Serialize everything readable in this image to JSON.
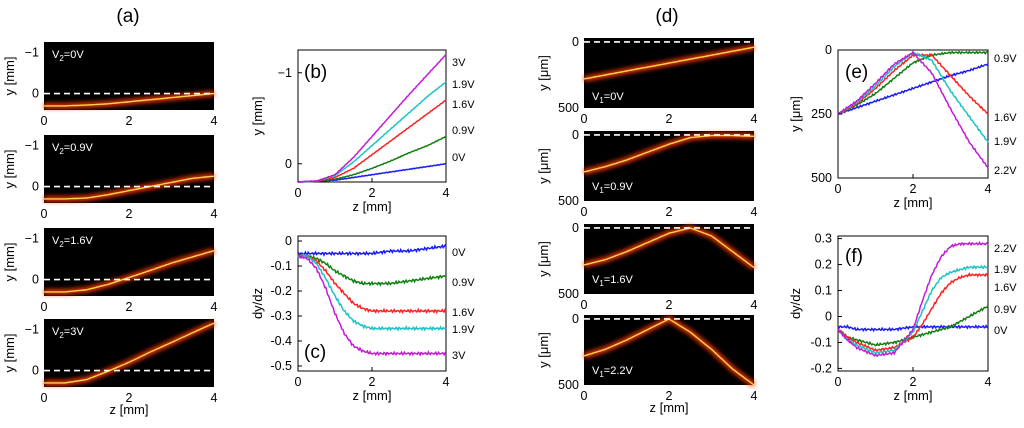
{
  "figure": {
    "label_a": "(a)",
    "label_d": "(d)"
  },
  "colors": {
    "v0": "#1a1aff",
    "v09": "#108010",
    "v16": "#ff2020",
    "v19": "#19c4c4",
    "v3": "#c41ad8"
  },
  "images_a": [
    {
      "ann_main": "V",
      "ann_sub": "2",
      "ann_rest": "=0V",
      "path_y_mm": [
        0.3,
        0.3,
        0.28,
        0.25,
        0.2,
        0.15,
        0.1,
        0.05,
        0.0
      ],
      "ylabel": "y [mm]",
      "yticks": [
        "−1",
        "0"
      ],
      "xticks": [
        "0",
        "2",
        "4"
      ]
    },
    {
      "ann_main": "V",
      "ann_sub": "2",
      "ann_rest": "=0.9V",
      "path_y_mm": [
        0.3,
        0.3,
        0.28,
        0.2,
        0.1,
        0.0,
        -0.1,
        -0.2,
        -0.25
      ],
      "ylabel": "y [mm]",
      "yticks": [
        "−1",
        "0"
      ],
      "xticks": [
        "0",
        "2",
        "4"
      ]
    },
    {
      "ann_main": "V",
      "ann_sub": "2",
      "ann_rest": "=1.6V",
      "path_y_mm": [
        0.3,
        0.3,
        0.25,
        0.12,
        -0.05,
        -0.22,
        -0.4,
        -0.55,
        -0.7
      ],
      "ylabel": "y [mm]",
      "yticks": [
        "−1",
        "0"
      ],
      "xticks": [
        "0",
        "2",
        "4"
      ]
    },
    {
      "ann_main": "V",
      "ann_sub": "2",
      "ann_rest": "=3V",
      "path_y_mm": [
        0.3,
        0.3,
        0.22,
        0.02,
        -0.2,
        -0.45,
        -0.68,
        -0.92,
        -1.15
      ],
      "ylabel": "y [mm]",
      "yticks": [
        "−1",
        "0"
      ],
      "xticks": [
        "0",
        "2",
        "4"
      ],
      "xlabel": "z [mm]"
    }
  ],
  "images_d": [
    {
      "ann_main": "V",
      "ann_sub": "1",
      "ann_rest": "=0V",
      "path_y_um": [
        280,
        250,
        220,
        190,
        160,
        130,
        100,
        70,
        40
      ],
      "ylabel": "y [μm]",
      "yticks": [
        "0",
        "500"
      ],
      "xticks": [
        "0",
        "2",
        "4"
      ]
    },
    {
      "ann_main": "V",
      "ann_sub": "1",
      "ann_rest": "=0.9V",
      "path_y_um": [
        280,
        240,
        190,
        130,
        70,
        20,
        5,
        5,
        10
      ],
      "ylabel": "y [μm]",
      "yticks": [
        "0",
        "500"
      ],
      "xticks": [
        "0",
        "2",
        "4"
      ]
    },
    {
      "ann_main": "V",
      "ann_sub": "1",
      "ann_rest": "=1.6V",
      "path_y_um": [
        280,
        240,
        180,
        110,
        40,
        0,
        60,
        180,
        300
      ],
      "ylabel": "y [μm]",
      "yticks": [
        "0",
        "500"
      ],
      "xticks": [
        "0",
        "2",
        "4"
      ]
    },
    {
      "ann_main": "V",
      "ann_sub": "1",
      "ann_rest": "=2.2V",
      "path_y_um": [
        280,
        230,
        160,
        80,
        0,
        100,
        230,
        380,
        500
      ],
      "ylabel": "y [μm]",
      "yticks": [
        "0",
        "500"
      ],
      "xticks": [
        "0",
        "2",
        "4"
      ],
      "xlabel": "z [mm]"
    }
  ],
  "chart_data": [
    {
      "id": "b",
      "panel_label": "(b)",
      "type": "line",
      "xlabel": "z [mm]",
      "ylabel": "y [mm]",
      "xlim": [
        0,
        4
      ],
      "ylim": [
        0.2,
        -1.25
      ],
      "yinverted": true,
      "xticks": [
        "0",
        "2",
        "4"
      ],
      "yticks": [
        "−1",
        "0"
      ],
      "x": [
        0,
        0.5,
        1,
        1.5,
        2,
        2.5,
        3,
        3.5,
        4
      ],
      "series": [
        {
          "name": "0V",
          "color": "#1a1aff",
          "values": [
            0.2,
            0.19,
            0.18,
            0.15,
            0.12,
            0.09,
            0.06,
            0.03,
            0.0
          ]
        },
        {
          "name": "0.9V",
          "color": "#108010",
          "values": [
            0.2,
            0.19,
            0.17,
            0.12,
            0.05,
            -0.03,
            -0.12,
            -0.2,
            -0.3
          ]
        },
        {
          "name": "1.6V",
          "color": "#ff2020",
          "values": [
            0.2,
            0.19,
            0.15,
            0.05,
            -0.1,
            -0.25,
            -0.4,
            -0.55,
            -0.7
          ]
        },
        {
          "name": "1.9V",
          "color": "#19c4c4",
          "values": [
            0.2,
            0.19,
            0.13,
            -0.02,
            -0.2,
            -0.38,
            -0.56,
            -0.74,
            -0.9
          ]
        },
        {
          "name": "3V",
          "color": "#c41ad8",
          "values": [
            0.2,
            0.19,
            0.12,
            -0.07,
            -0.3,
            -0.53,
            -0.76,
            -0.98,
            -1.2
          ]
        }
      ],
      "end_labels": [
        "3V",
        "1.9V",
        "1.6V",
        "0.9V",
        "0V"
      ]
    },
    {
      "id": "c",
      "panel_label": "(c)",
      "type": "line",
      "xlabel": "z [mm]",
      "ylabel": "dy/dz",
      "xlim": [
        0,
        4
      ],
      "ylim": [
        -0.52,
        0.02
      ],
      "xticks": [
        "0",
        "2",
        "4"
      ],
      "yticks": [
        "0",
        "-0.1",
        "-0.2",
        "-0.3",
        "-0.4",
        "-0.5"
      ],
      "x": [
        0,
        0.25,
        0.5,
        0.75,
        1,
        1.25,
        1.5,
        1.75,
        2,
        2.5,
        3,
        3.5,
        4
      ],
      "series": [
        {
          "name": "0V",
          "color": "#1a1aff",
          "values": [
            -0.05,
            -0.05,
            -0.05,
            -0.05,
            -0.05,
            -0.05,
            -0.05,
            -0.05,
            -0.05,
            -0.04,
            -0.04,
            -0.03,
            -0.02
          ]
        },
        {
          "name": "0.9V",
          "color": "#108010",
          "values": [
            -0.06,
            -0.06,
            -0.07,
            -0.09,
            -0.12,
            -0.14,
            -0.16,
            -0.17,
            -0.17,
            -0.17,
            -0.16,
            -0.15,
            -0.14
          ]
        },
        {
          "name": "1.6V",
          "color": "#ff2020",
          "values": [
            -0.06,
            -0.06,
            -0.08,
            -0.12,
            -0.17,
            -0.21,
            -0.25,
            -0.27,
            -0.28,
            -0.28,
            -0.28,
            -0.28,
            -0.28
          ]
        },
        {
          "name": "1.9V",
          "color": "#19c4c4",
          "values": [
            -0.06,
            -0.06,
            -0.09,
            -0.15,
            -0.22,
            -0.28,
            -0.32,
            -0.34,
            -0.35,
            -0.35,
            -0.35,
            -0.35,
            -0.35
          ]
        },
        {
          "name": "3V",
          "color": "#c41ad8",
          "values": [
            -0.06,
            -0.07,
            -0.11,
            -0.19,
            -0.29,
            -0.37,
            -0.42,
            -0.44,
            -0.45,
            -0.45,
            -0.45,
            -0.45,
            -0.45
          ]
        }
      ],
      "end_labels": [
        "0V",
        "0.9V",
        "1.6V",
        "1.9V",
        "3V"
      ]
    },
    {
      "id": "e",
      "panel_label": "(e)",
      "type": "line",
      "xlabel": "z [mm]",
      "ylabel": "y [μm]",
      "xlim": [
        0,
        4
      ],
      "ylim": [
        0,
        500
      ],
      "yinverted": true,
      "xticks": [
        "0",
        "2",
        "4"
      ],
      "yticks": [
        "0",
        "250",
        "500"
      ],
      "x": [
        0,
        0.5,
        1,
        1.5,
        2,
        2.5,
        3,
        3.5,
        4
      ],
      "series": [
        {
          "name": "0V",
          "color": "#1a1aff",
          "values": [
            250,
            225,
            200,
            175,
            150,
            125,
            100,
            80,
            55
          ]
        },
        {
          "name": "0.9V",
          "color": "#108010",
          "values": [
            250,
            215,
            170,
            110,
            50,
            20,
            10,
            10,
            10
          ]
        },
        {
          "name": "1.6V",
          "color": "#ff2020",
          "values": [
            250,
            210,
            150,
            80,
            20,
            20,
            100,
            180,
            250
          ]
        },
        {
          "name": "1.9V",
          "color": "#19c4c4",
          "values": [
            250,
            205,
            140,
            65,
            10,
            40,
            160,
            260,
            360
          ]
        },
        {
          "name": "2.2V",
          "color": "#c41ad8",
          "values": [
            250,
            200,
            130,
            55,
            10,
            90,
            230,
            360,
            460
          ]
        }
      ],
      "end_labels": [
        "0.9V",
        "1.6V",
        "1.9V",
        "2.2V"
      ]
    },
    {
      "id": "f",
      "panel_label": "(f)",
      "type": "line",
      "xlabel": "z [mm]",
      "ylabel": "dy/dz",
      "xlim": [
        0,
        4
      ],
      "ylim": [
        -0.21,
        0.31
      ],
      "xticks": [
        "0",
        "2",
        "4"
      ],
      "yticks": [
        "0.3",
        "0.2",
        "0.1",
        "0",
        "-0.1",
        "-0.2"
      ],
      "x": [
        0,
        0.25,
        0.5,
        1,
        1.5,
        2,
        2.25,
        2.5,
        2.75,
        3,
        3.25,
        3.5,
        3.75,
        4
      ],
      "series": [
        {
          "name": "0V",
          "color": "#1a1aff",
          "values": [
            -0.04,
            -0.04,
            -0.05,
            -0.05,
            -0.05,
            -0.04,
            -0.04,
            -0.04,
            -0.04,
            -0.04,
            -0.04,
            -0.04,
            -0.04,
            -0.04
          ]
        },
        {
          "name": "0.9V",
          "color": "#108010",
          "values": [
            -0.05,
            -0.08,
            -0.09,
            -0.11,
            -0.1,
            -0.08,
            -0.07,
            -0.06,
            -0.05,
            -0.04,
            -0.02,
            0.0,
            0.02,
            0.04
          ]
        },
        {
          "name": "1.6V",
          "color": "#ff2020",
          "values": [
            -0.05,
            -0.08,
            -0.1,
            -0.13,
            -0.12,
            -0.08,
            -0.03,
            0.03,
            0.09,
            0.13,
            0.15,
            0.16,
            0.16,
            0.16
          ]
        },
        {
          "name": "1.9V",
          "color": "#19c4c4",
          "values": [
            -0.05,
            -0.09,
            -0.11,
            -0.14,
            -0.13,
            -0.06,
            0.02,
            0.1,
            0.15,
            0.17,
            0.18,
            0.19,
            0.19,
            0.19
          ]
        },
        {
          "name": "2.2V",
          "color": "#c41ad8",
          "values": [
            -0.05,
            -0.09,
            -0.12,
            -0.15,
            -0.14,
            -0.05,
            0.06,
            0.16,
            0.23,
            0.27,
            0.28,
            0.28,
            0.28,
            0.28
          ]
        }
      ],
      "end_labels": [
        "2.2V",
        "1.9V",
        "1.6V",
        "0.9V",
        "0V"
      ]
    }
  ]
}
